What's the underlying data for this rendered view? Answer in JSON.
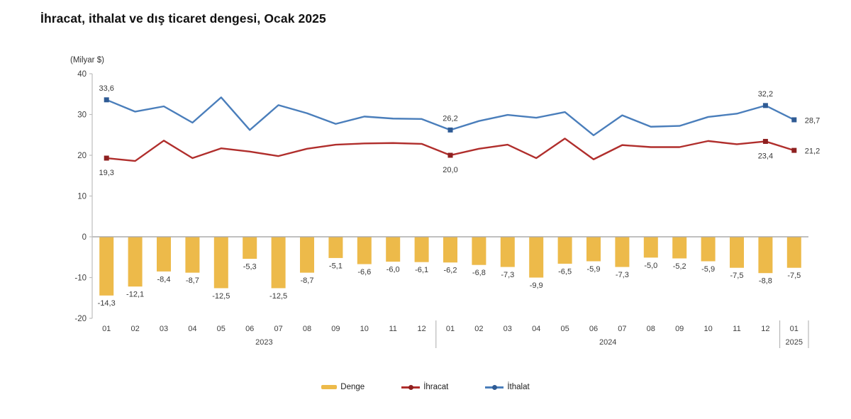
{
  "title": "İhracat, ithalat ve dış ticaret dengesi, Ocak 2025",
  "chart_data": {
    "type": "bar+line combo",
    "title": "İhracat, ithalat ve dış ticaret dengesi, Ocak 2025",
    "unit_label": "(Milyar $)",
    "decimal_separator": ",",
    "grid": "zero-line only",
    "legend_position": "bottom",
    "ylim": [
      -20,
      40
    ],
    "y_ticks": [
      40,
      30,
      20,
      10,
      0,
      -10,
      -20
    ],
    "months": [
      "01",
      "02",
      "03",
      "04",
      "05",
      "06",
      "07",
      "08",
      "09",
      "10",
      "11",
      "12",
      "01",
      "02",
      "03",
      "04",
      "05",
      "06",
      "07",
      "08",
      "09",
      "10",
      "11",
      "12",
      "01"
    ],
    "year_groups": [
      {
        "label": "2023",
        "start": 0,
        "end": 11
      },
      {
        "label": "2024",
        "start": 12,
        "end": 23
      },
      {
        "label": "2025",
        "start": 24,
        "end": 24
      }
    ],
    "series": [
      {
        "name": "Denge",
        "type": "bar",
        "color": "#EDBA4A",
        "values": [
          -14.3,
          -12.1,
          -8.4,
          -8.7,
          -12.5,
          -5.3,
          -12.5,
          -8.7,
          -5.1,
          -6.6,
          -6.0,
          -6.1,
          -6.2,
          -6.8,
          -7.3,
          -9.9,
          -6.5,
          -5.9,
          -7.3,
          -5.0,
          -5.2,
          -5.9,
          -7.5,
          -8.8,
          -7.5
        ],
        "value_labels": "all"
      },
      {
        "name": "İhracat",
        "type": "line",
        "color": "#B02E2C",
        "marker_color": "#8E2020",
        "values": [
          19.3,
          18.6,
          23.6,
          19.3,
          21.7,
          20.9,
          19.8,
          21.6,
          22.6,
          22.9,
          23.0,
          22.8,
          20.0,
          21.6,
          22.6,
          19.3,
          24.1,
          19.0,
          22.5,
          22.0,
          22.0,
          23.5,
          22.7,
          23.4,
          21.2
        ],
        "point_labels": [
          {
            "index": 0,
            "position": "below"
          },
          {
            "index": 12,
            "position": "below"
          },
          {
            "index": 23,
            "position": "below"
          },
          {
            "index": 24,
            "position": "right"
          }
        ]
      },
      {
        "name": "İthalat",
        "type": "line",
        "color": "#4A7EBB",
        "marker_color": "#2F5B94",
        "values": [
          33.6,
          30.7,
          32.0,
          28.0,
          34.2,
          26.2,
          32.3,
          30.3,
          27.7,
          29.5,
          29.0,
          28.9,
          26.2,
          28.4,
          29.9,
          29.2,
          30.6,
          24.9,
          29.8,
          27.0,
          27.2,
          29.4,
          30.2,
          32.2,
          28.7
        ],
        "point_labels": [
          {
            "index": 0,
            "position": "above"
          },
          {
            "index": 12,
            "position": "above"
          },
          {
            "index": 23,
            "position": "above"
          },
          {
            "index": 24,
            "position": "right"
          }
        ]
      }
    ]
  },
  "legend": {
    "items": [
      {
        "label": "Denge",
        "swatch": "bar",
        "color": "#EDBA4A"
      },
      {
        "label": "İhracat",
        "swatch": "line",
        "color": "#B02E2C",
        "marker_color": "#8E2020"
      },
      {
        "label": "İthalat",
        "swatch": "line",
        "color": "#4A7EBB",
        "marker_color": "#2F5B94"
      }
    ]
  },
  "colors": {
    "axis": "#BFBFBF",
    "zero_line": "#9B9B9B",
    "divider": "#ABABAB",
    "tick_text": "#3F3F3F",
    "label_text": "#383838",
    "title_text": "#111111"
  }
}
